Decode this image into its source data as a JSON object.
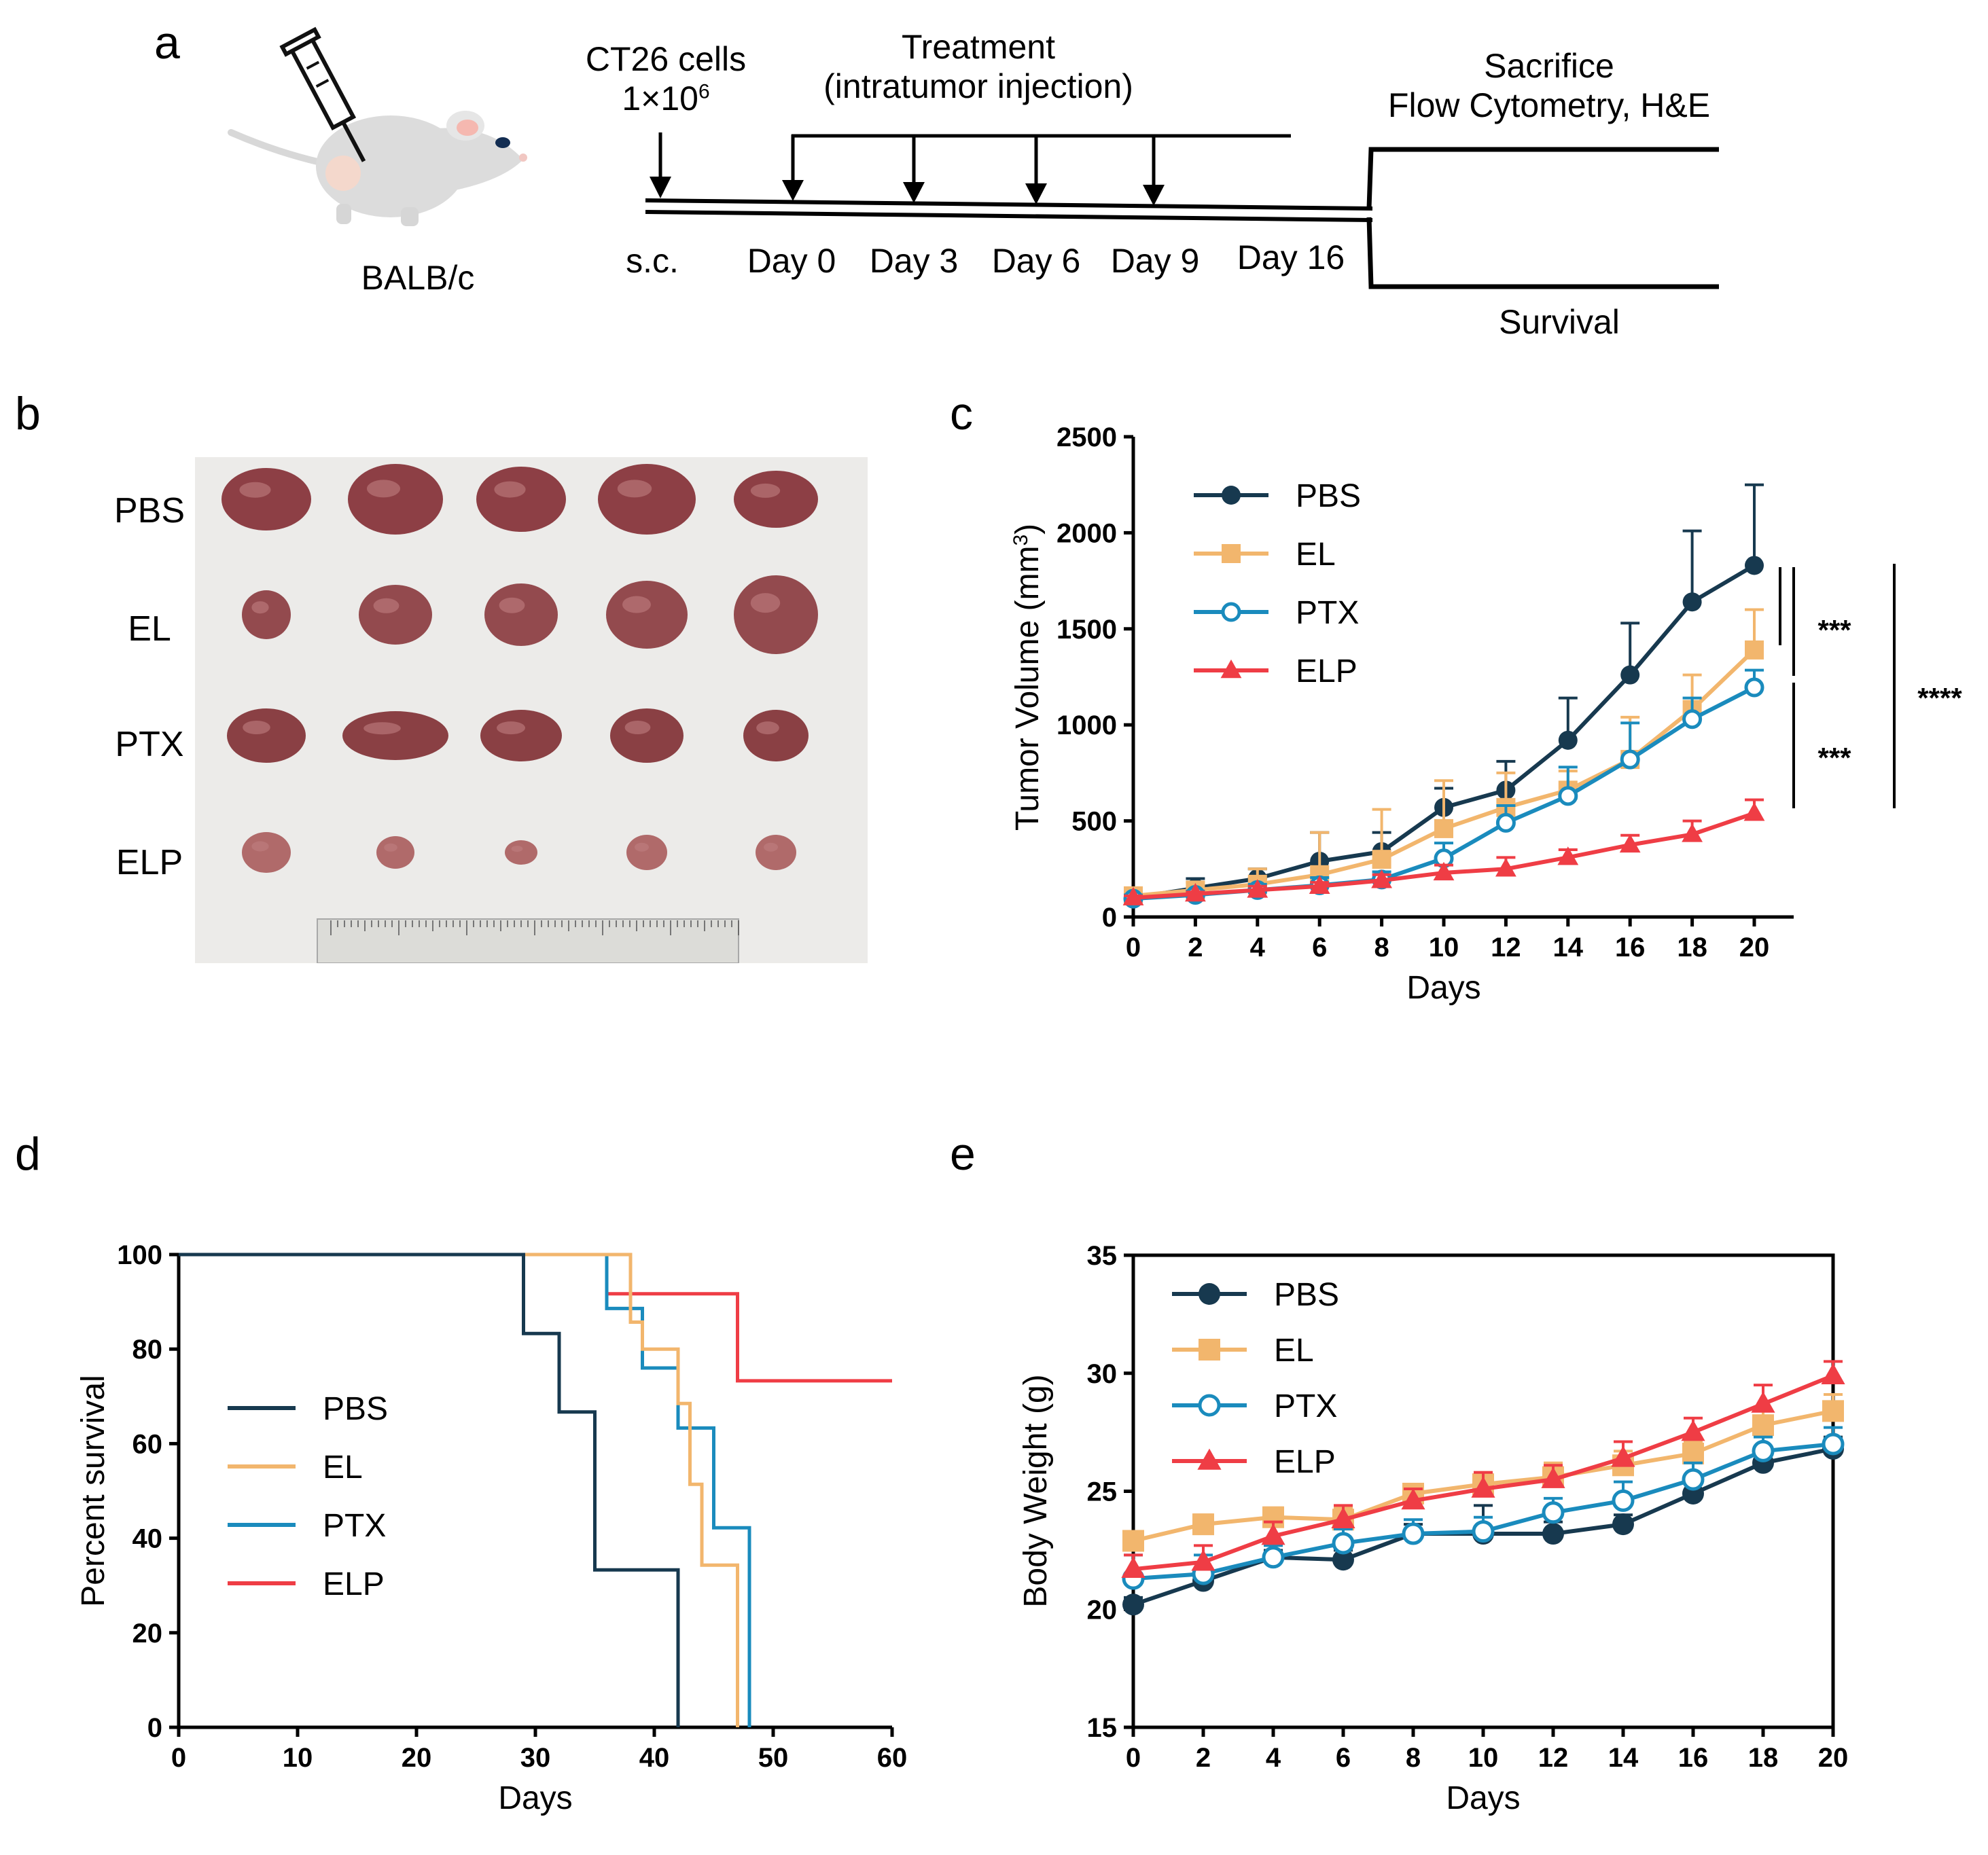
{
  "panels": {
    "a": {
      "letter": "a",
      "mouse_label": "BALB/c",
      "cells_line1": "CT26 cells",
      "cells_line2": "1×10",
      "cells_exp": "6",
      "treatment_line1": "Treatment",
      "treatment_line2": "(intratumor injection)",
      "timeline": [
        "s.c.",
        "Day 0",
        "Day 3",
        "Day 6",
        "Day 9",
        "Day 16"
      ],
      "sacrifice_line1": "Sacrifice",
      "sacrifice_line2": "Flow Cytometry, H&E",
      "survival": "Survival"
    },
    "b": {
      "letter": "b",
      "rows": [
        "PBS",
        "EL",
        "PTX",
        "ELP"
      ],
      "tumor_colors": {
        "PBS": "#8d3f45",
        "EL": "#934a4e",
        "PTX": "#8a4044",
        "ELP": "#b06a6a"
      }
    },
    "c": {
      "letter": "c"
    },
    "d": {
      "letter": "d"
    },
    "e": {
      "letter": "e"
    }
  },
  "colors": {
    "PBS": "#17394f",
    "EL": "#f2b66d",
    "PTX": "#1a8bbd",
    "ELP": "#ef3d45"
  },
  "chart_data": [
    {
      "id": "c",
      "type": "line",
      "title": "",
      "xlabel": "Days",
      "ylabel": "Tumor Volume (mm",
      "ylabel_sup": "3",
      "ylabel_close": ")",
      "x": [
        0,
        2,
        4,
        6,
        8,
        10,
        12,
        14,
        16,
        18,
        20
      ],
      "xlim": [
        0,
        20
      ],
      "ylim": [
        0,
        2500
      ],
      "xticks": [
        0,
        2,
        4,
        6,
        8,
        10,
        12,
        14,
        16,
        18,
        20
      ],
      "yticks": [
        0,
        500,
        1000,
        1500,
        2000,
        2500
      ],
      "series": [
        {
          "name": "PBS",
          "values": [
            100,
            150,
            200,
            290,
            340,
            570,
            660,
            920,
            1260,
            1640,
            1830
          ],
          "errors": [
            30,
            50,
            50,
            150,
            100,
            100,
            150,
            220,
            270,
            370,
            420
          ]
        },
        {
          "name": "EL",
          "values": [
            110,
            140,
            170,
            220,
            300,
            460,
            570,
            660,
            820,
            1080,
            1390
          ],
          "errors": [
            40,
            40,
            80,
            220,
            260,
            250,
            180,
            100,
            220,
            180,
            210
          ]
        },
        {
          "name": "PTX",
          "values": [
            95,
            115,
            140,
            165,
            195,
            305,
            490,
            630,
            820,
            1030,
            1195
          ],
          "errors": [
            20,
            20,
            30,
            40,
            40,
            80,
            90,
            150,
            190,
            110,
            90
          ]
        },
        {
          "name": "ELP",
          "values": [
            100,
            120,
            140,
            160,
            190,
            230,
            250,
            310,
            375,
            430,
            540
          ],
          "errors": [
            10,
            10,
            20,
            20,
            30,
            40,
            60,
            40,
            50,
            70,
            70
          ]
        }
      ],
      "significance": [
        "***",
        "***",
        "****"
      ],
      "legend": "top-left"
    },
    {
      "id": "d",
      "type": "line",
      "title": "",
      "xlabel": "Days",
      "ylabel": "Percent survival",
      "xlim": [
        0,
        60
      ],
      "ylim": [
        0,
        100
      ],
      "xticks": [
        0,
        10,
        20,
        30,
        40,
        50,
        60
      ],
      "yticks": [
        0,
        20,
        40,
        60,
        80,
        100
      ],
      "series": [
        {
          "name": "PBS",
          "x": [
            0,
            29,
            29,
            32,
            32,
            35,
            35,
            42,
            42
          ],
          "values": [
            100,
            100,
            83.3,
            83.3,
            66.7,
            66.7,
            33.3,
            33.3,
            0
          ]
        },
        {
          "name": "EL",
          "x": [
            0,
            38,
            38,
            39,
            39,
            42,
            42,
            43,
            43,
            44,
            44,
            47,
            47
          ],
          "values": [
            100,
            100,
            85.7,
            85.7,
            80,
            80,
            68.5,
            68.5,
            51.4,
            51.4,
            34.3,
            34.3,
            0
          ]
        },
        {
          "name": "PTX",
          "x": [
            0,
            36,
            36,
            39,
            39,
            42,
            42,
            43,
            43,
            45,
            45,
            48,
            48
          ],
          "values": [
            100,
            100,
            88.6,
            88.6,
            76,
            76,
            63.3,
            63.3,
            63.3,
            63.3,
            42.2,
            42.2,
            0
          ]
        },
        {
          "name": "ELP",
          "x": [
            36,
            47,
            47,
            60
          ],
          "values": [
            91.7,
            91.7,
            73.3,
            73.3
          ]
        }
      ],
      "legend": "left"
    },
    {
      "id": "e",
      "type": "line",
      "title": "",
      "xlabel": "Days",
      "ylabel": "Body Weight (g)",
      "x": [
        0,
        2,
        4,
        6,
        8,
        10,
        12,
        14,
        16,
        18,
        20
      ],
      "xlim": [
        0,
        20
      ],
      "ylim": [
        15,
        35
      ],
      "xticks": [
        0,
        2,
        4,
        6,
        8,
        10,
        12,
        14,
        16,
        18,
        20
      ],
      "yticks": [
        15,
        20,
        25,
        30,
        35
      ],
      "series": [
        {
          "name": "PBS",
          "values": [
            20.2,
            21.2,
            22.2,
            22.1,
            23.2,
            23.2,
            23.2,
            23.6,
            24.9,
            26.2,
            26.8
          ],
          "errors": [
            0.3,
            0.3,
            0.3,
            0.4,
            0.4,
            1.2,
            0.5,
            0.4,
            0.5,
            0.4,
            0.5
          ]
        },
        {
          "name": "EL",
          "values": [
            22.9,
            23.6,
            23.9,
            23.8,
            24.9,
            25.3,
            25.6,
            26.1,
            26.6,
            27.8,
            28.4
          ],
          "errors": [
            0.3,
            0.4,
            0.4,
            0.5,
            0.4,
            0.5,
            0.6,
            0.6,
            0.5,
            0.6,
            0.7
          ]
        },
        {
          "name": "PTX",
          "values": [
            21.3,
            21.5,
            22.2,
            22.8,
            23.2,
            23.3,
            24.1,
            24.6,
            25.5,
            26.7,
            27.0
          ],
          "errors": [
            1.0,
            0.8,
            0.5,
            0.6,
            0.6,
            0.6,
            0.6,
            0.8,
            0.7,
            0.6,
            0.7
          ]
        },
        {
          "name": "ELP",
          "values": [
            21.7,
            22.0,
            23.1,
            23.8,
            24.6,
            25.1,
            25.5,
            26.4,
            27.5,
            28.7,
            29.9
          ],
          "errors": [
            0.6,
            0.7,
            0.6,
            0.6,
            0.5,
            0.7,
            0.6,
            0.7,
            0.6,
            0.8,
            0.6
          ]
        }
      ],
      "legend": "top-left"
    }
  ]
}
